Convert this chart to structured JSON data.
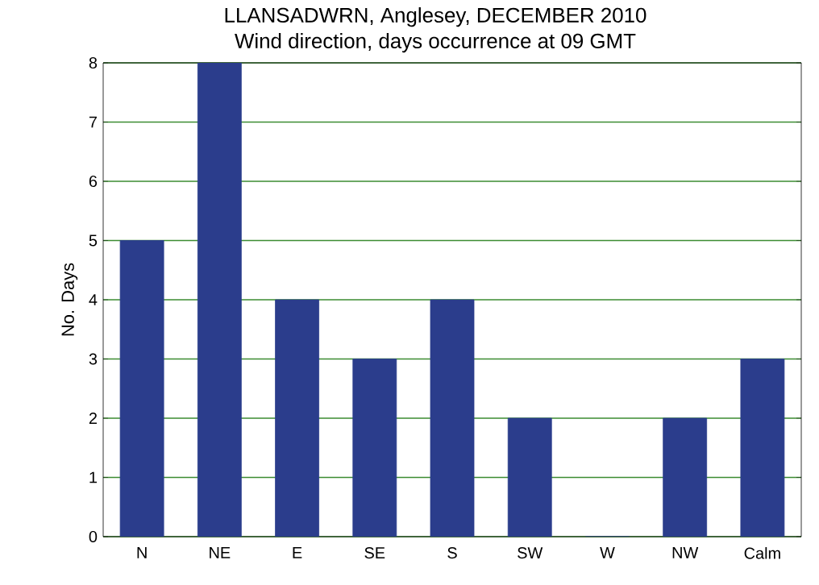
{
  "chart_data": {
    "type": "bar",
    "title": "LLANSADWRN, Anglesey, DECEMBER 2010",
    "subtitle": "Wind direction, days occurrence at 09 GMT",
    "ylabel": "No. Days",
    "categories": [
      "N",
      "NE",
      "E",
      "SE",
      "S",
      "SW",
      "W",
      "NW",
      "Calm"
    ],
    "values": [
      5,
      8,
      4,
      3,
      4,
      2,
      0,
      2,
      3
    ],
    "color": "#2b3d8c",
    "ylim": [
      0,
      8
    ],
    "yticks": [
      0,
      1,
      2,
      3,
      4,
      5,
      6,
      7,
      8
    ],
    "grid": "y"
  }
}
